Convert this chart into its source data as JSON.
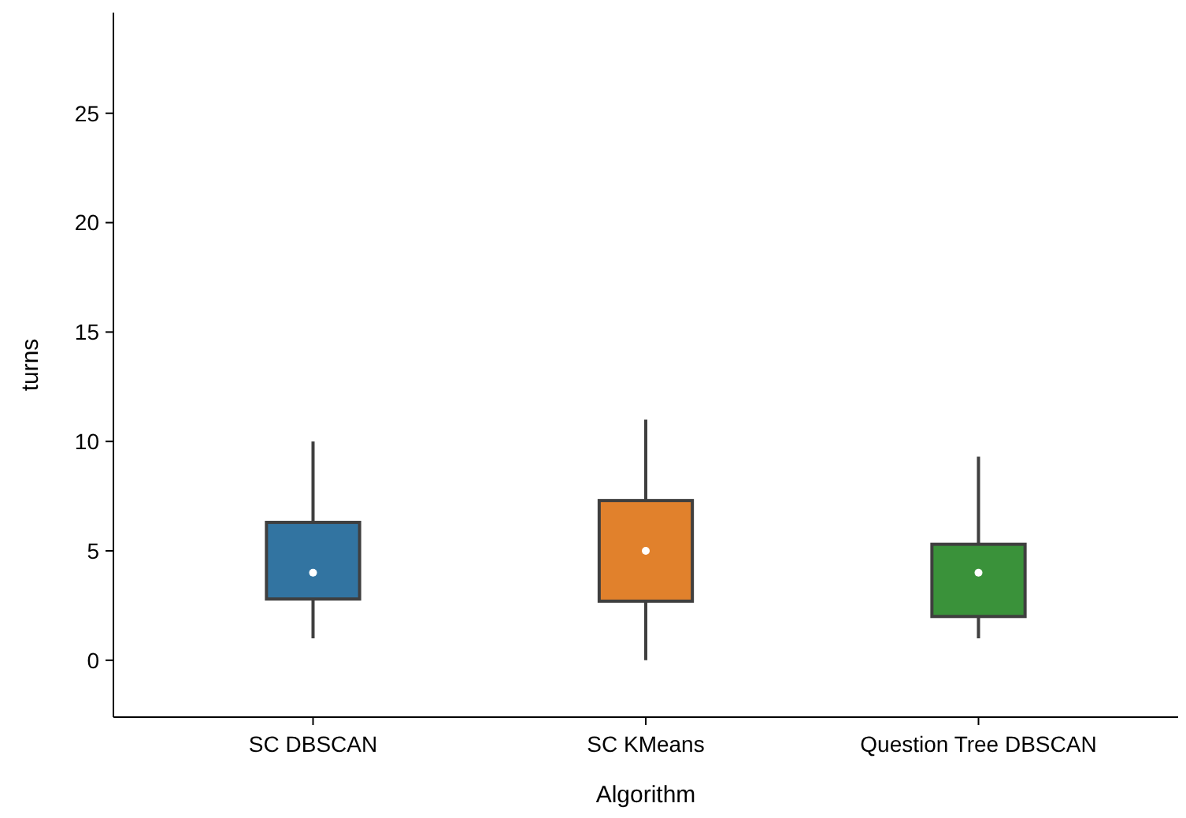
{
  "chart_data": {
    "type": "box",
    "xlabel": "Algorithm",
    "ylabel": "turns",
    "categories": [
      "SC DBSCAN",
      "SC KMeans",
      "Question Tree DBSCAN"
    ],
    "colors": [
      "#3274a1",
      "#e1812c",
      "#3a923a"
    ],
    "boxes": [
      {
        "low": 1,
        "q1": 2.8,
        "median": 4,
        "q3": 6.3,
        "high": 10
      },
      {
        "low": 0,
        "q1": 2.7,
        "median": 5,
        "q3": 7.3,
        "high": 11
      },
      {
        "low": 1,
        "q1": 2,
        "median": 4,
        "q3": 5.3,
        "high": 9.3
      }
    ],
    "ylim": [
      -2.6,
      29.6
    ],
    "yticks": [
      0,
      5,
      10,
      15,
      20,
      25
    ],
    "grid": false
  }
}
